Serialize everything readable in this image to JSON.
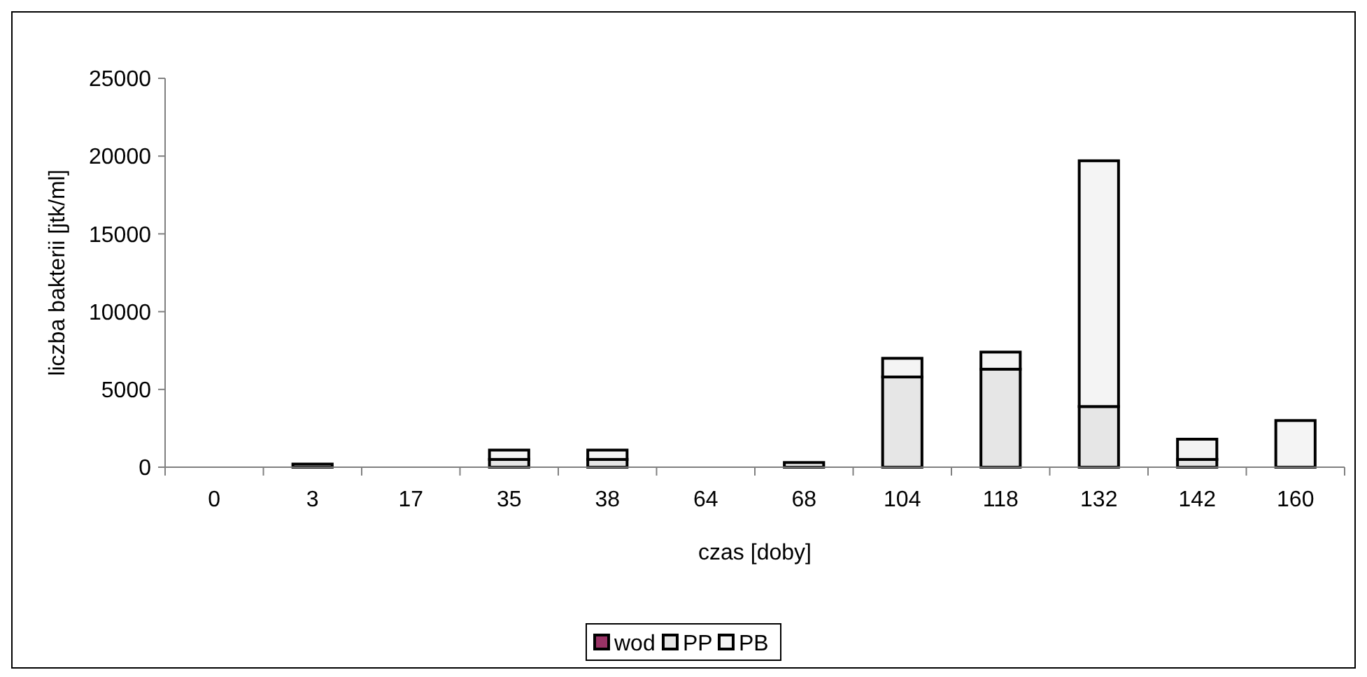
{
  "chart_data": {
    "type": "bar",
    "stacked": true,
    "xlabel": "czas [doby]",
    "ylabel": "liczba bakterii [jtk/ml]",
    "categories": [
      "0",
      "3",
      "17",
      "35",
      "38",
      "64",
      "68",
      "104",
      "118",
      "132",
      "142",
      "160"
    ],
    "series": [
      {
        "name": "wod",
        "color": "#993366",
        "values": [
          0,
          0,
          0,
          0,
          0,
          0,
          0,
          0,
          0,
          0,
          0,
          0
        ]
      },
      {
        "name": "PP",
        "color": "#e6e6e6",
        "values": [
          0,
          null,
          0,
          500,
          500,
          0,
          null,
          5800,
          6300,
          3900,
          500,
          null
        ]
      },
      {
        "name": "PB",
        "color": "#f4f4f4",
        "values": [
          0,
          200,
          0,
          600,
          600,
          0,
          300,
          1200,
          1100,
          15800,
          1300,
          3000
        ]
      }
    ],
    "ylim": [
      0,
      25000
    ],
    "yticks": [
      0,
      5000,
      10000,
      15000,
      20000,
      25000
    ],
    "grid": false,
    "legend": "bottom"
  }
}
